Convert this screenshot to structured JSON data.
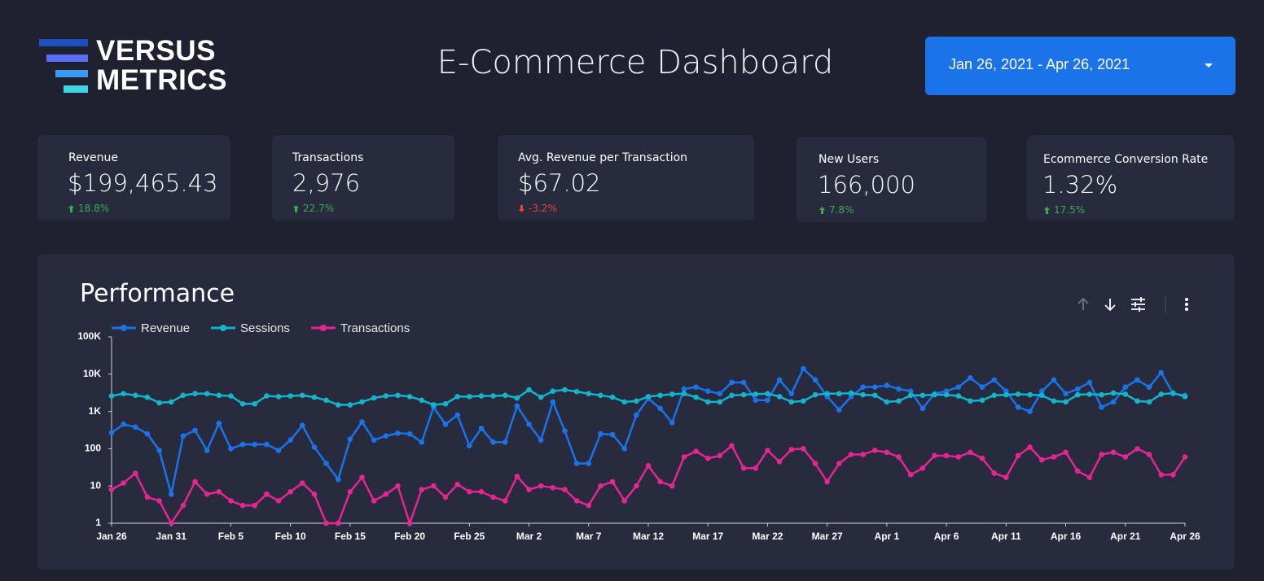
{
  "header": {
    "logo_top": "VERSUS",
    "logo_bottom": "METRICS",
    "title": "E-Commerce Dashboard",
    "date_range": "Jan 26, 2021 - Apr 26, 2021"
  },
  "kpis": [
    {
      "label": "Revenue",
      "value": "$199,465.43",
      "change": "18.8%"
    },
    {
      "label": "Transactions",
      "value": "2,976",
      "change": "22.7%"
    },
    {
      "label": "Avg. Revenue per Transaction",
      "value": "$67.02",
      "change": "-3.2%"
    },
    {
      "label": "New Users",
      "value": "166,000",
      "change": "7.8%"
    },
    {
      "label": "Ecommerce Conversion Rate",
      "value": "1.32%",
      "change": "17.5%"
    }
  ],
  "chart_data": {
    "type": "line",
    "title": "Performance",
    "log_scale": true,
    "grid": false,
    "legend": "top-left",
    "categories": [
      "Jan 26",
      null,
      null,
      null,
      null,
      "Jan 31",
      null,
      null,
      null,
      null,
      "Feb 5",
      null,
      null,
      null,
      null,
      "Feb 10",
      null,
      null,
      null,
      null,
      "Feb 15",
      null,
      null,
      null,
      null,
      "Feb 20",
      null,
      null,
      null,
      null,
      "Feb 25",
      null,
      null,
      null,
      null,
      "Mar 2",
      null,
      null,
      null,
      null,
      "Mar 7",
      null,
      null,
      null,
      null,
      "Mar 12",
      null,
      null,
      null,
      null,
      "Mar 17",
      null,
      null,
      null,
      null,
      "Mar 22",
      null,
      null,
      null,
      null,
      "Mar 27",
      null,
      null,
      null,
      null,
      "Apr 1",
      null,
      null,
      null,
      null,
      "Apr 6",
      null,
      null,
      null,
      null,
      "Apr 11",
      null,
      null,
      null,
      null,
      "Apr 16",
      null,
      null,
      null,
      null,
      "Apr 21",
      null,
      null,
      null,
      null,
      "Apr 26"
    ],
    "series": [
      {
        "name": "Revenue",
        "color": "#1a73e8",
        "values": [
          270,
          450,
          380,
          250,
          90,
          6,
          220,
          310,
          90,
          480,
          100,
          130,
          130,
          130,
          90,
          170,
          420,
          110,
          40,
          15,
          180,
          520,
          170,
          220,
          260,
          250,
          150,
          1300,
          450,
          800,
          120,
          350,
          150,
          150,
          1400,
          450,
          170,
          1800,
          300,
          40,
          40,
          250,
          240,
          100,
          800,
          2200,
          1200,
          500,
          4000,
          4500,
          3500,
          3000,
          6000,
          6000,
          2000,
          2000,
          7000,
          3000,
          14000,
          7000,
          2500,
          1100,
          2500,
          4500,
          4500,
          5000,
          4000,
          3500,
          1200,
          3000,
          3500,
          4500,
          8000,
          4500,
          7000,
          3500,
          1300,
          1000,
          3500,
          7000,
          3000,
          4000,
          6000,
          1300,
          1800,
          4500,
          7000,
          4500,
          11000,
          3000,
          2700
        ]
      },
      {
        "name": "Sessions",
        "color": "#12b5cb",
        "values": [
          2600,
          3000,
          2700,
          2400,
          1700,
          1800,
          2700,
          3000,
          3000,
          2700,
          2600,
          1600,
          1600,
          2600,
          2500,
          2600,
          2700,
          2400,
          2000,
          1500,
          1500,
          1800,
          2300,
          2600,
          2700,
          2500,
          2000,
          1500,
          1600,
          2500,
          2500,
          2600,
          2600,
          2700,
          2300,
          3800,
          2400,
          3500,
          3800,
          3400,
          3000,
          2700,
          2400,
          1800,
          1900,
          2500,
          2700,
          2900,
          3000,
          2400,
          1800,
          1800,
          2700,
          2800,
          2900,
          3000,
          2500,
          1800,
          1900,
          2800,
          3000,
          3000,
          3100,
          2800,
          2700,
          1800,
          1900,
          2700,
          2700,
          2800,
          2800,
          2600,
          1900,
          2000,
          2700,
          2800,
          2900,
          2800,
          2700,
          1900,
          1800,
          2800,
          2900,
          2800,
          3100,
          2900,
          1900,
          1800,
          2900,
          3100,
          2500
        ]
      },
      {
        "name": "Transactions",
        "color": "#e52592",
        "values": [
          8,
          12,
          22,
          5,
          4,
          1,
          3,
          13,
          6,
          7,
          4,
          3,
          3,
          6,
          4,
          7,
          12,
          6,
          1,
          1,
          7,
          17,
          4,
          6,
          10,
          1,
          8,
          10,
          5,
          11,
          7,
          7,
          5,
          4,
          18,
          8,
          10,
          9,
          8,
          4,
          3,
          10,
          13,
          4,
          10,
          35,
          13,
          10,
          60,
          85,
          55,
          65,
          120,
          30,
          30,
          90,
          45,
          95,
          100,
          40,
          13,
          40,
          70,
          70,
          90,
          80,
          60,
          20,
          30,
          65,
          65,
          60,
          80,
          55,
          22,
          17,
          65,
          110,
          50,
          60,
          80,
          25,
          17,
          70,
          80,
          60,
          100,
          70,
          20,
          20,
          60
        ]
      }
    ],
    "ylim": [
      1,
      100000
    ],
    "yticks": [
      1,
      10,
      100,
      {
        "value": 1000,
        "label": "1K"
      },
      {
        "value": 10000,
        "label": "10K"
      },
      {
        "value": 100000,
        "label": "100K"
      }
    ]
  }
}
